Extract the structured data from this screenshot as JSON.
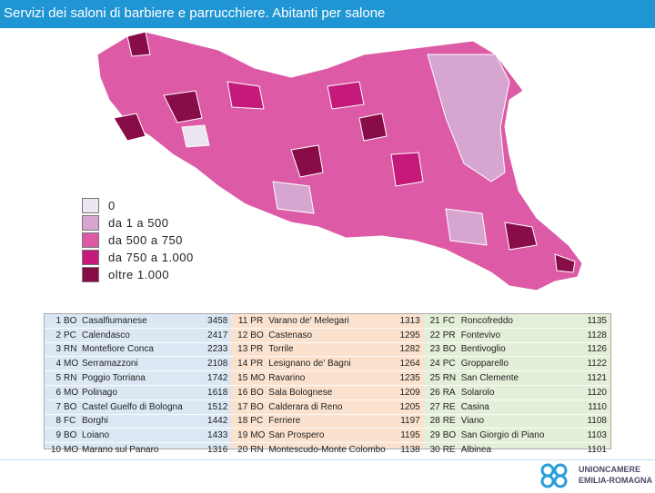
{
  "header": {
    "title": "Servizi dei saloni di barbiere e parrucchiere. Abitanti per salone"
  },
  "legend": {
    "items": [
      {
        "label": "0",
        "color": "#ece4ef"
      },
      {
        "label": "da 1 a 500",
        "color": "#d7a6d0"
      },
      {
        "label": "da 500 a 750",
        "color": "#dc5aa6"
      },
      {
        "label": "da 750 a 1.000",
        "color": "#c51a7c"
      },
      {
        "label": "oltre 1.000",
        "color": "#880c48"
      }
    ]
  },
  "table": {
    "columns": [
      {
        "color": "#dbe8f3",
        "rows": [
          [
            1,
            "BO",
            "Casalfiumanese",
            3458
          ],
          [
            2,
            "PC",
            "Calendasco",
            2417
          ],
          [
            3,
            "RN",
            "Montefiore Conca",
            2233
          ],
          [
            4,
            "MO",
            "Serramazzoni",
            2108
          ],
          [
            5,
            "RN",
            "Poggio Torriana",
            1742
          ],
          [
            6,
            "MO",
            "Polinago",
            1618
          ],
          [
            7,
            "BO",
            "Castel Guelfo di Bologna",
            1512
          ],
          [
            8,
            "FC",
            "Borghi",
            1442
          ],
          [
            9,
            "BO",
            "Loiano",
            1433
          ],
          [
            10,
            "MO",
            "Marano sul Panaro",
            1316
          ]
        ]
      },
      {
        "color": "#fbe2cf",
        "rows": [
          [
            11,
            "PR",
            "Varano de' Melegari",
            1313
          ],
          [
            12,
            "BO",
            "Castenaso",
            1295
          ],
          [
            13,
            "PR",
            "Torrile",
            1282
          ],
          [
            14,
            "PR",
            "Lesignano de' Bagni",
            1264
          ],
          [
            15,
            "MO",
            "Ravarino",
            1235
          ],
          [
            16,
            "BO",
            "Sala Bolognese",
            1209
          ],
          [
            17,
            "BO",
            "Calderara di Reno",
            1205
          ],
          [
            18,
            "PC",
            "Ferriere",
            1197
          ],
          [
            19,
            "MO",
            "San Prospero",
            1195
          ],
          [
            20,
            "RN",
            "Montescudo-Monte Colombo",
            1138
          ]
        ]
      },
      {
        "color": "#e4efd9",
        "rows": [
          [
            21,
            "FC",
            "Roncofreddo",
            1135
          ],
          [
            22,
            "PR",
            "Fontevivo",
            1128
          ],
          [
            23,
            "BO",
            "Bentivoglio",
            1126
          ],
          [
            24,
            "PC",
            "Gropparello",
            1122
          ],
          [
            25,
            "RN",
            "San Clemente",
            1121
          ],
          [
            26,
            "RA",
            "Solarolo",
            1120
          ],
          [
            27,
            "RE",
            "Casina",
            1110
          ],
          [
            28,
            "RE",
            "Viano",
            1108
          ],
          [
            29,
            "BO",
            "San Giorgio di Piano",
            1103
          ],
          [
            30,
            "RE",
            "Albinea",
            1101
          ]
        ]
      }
    ]
  },
  "logo": {
    "line1": "UNIONCAMERE",
    "line2": "EMILIA-ROMAGNA"
  }
}
